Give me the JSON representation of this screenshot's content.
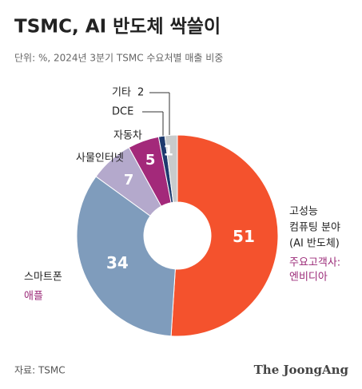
{
  "chart_data": {
    "type": "donut",
    "title": "TSMC, AI 반도체 싹쓸이",
    "subtitle": "단위: %, 2024년 3분기 TSMC 수요처별 매출 비중",
    "source": "자료: TSMC",
    "logo": "The JoongAng",
    "categories": [
      [
        "고성능",
        "컴퓨팅 분야",
        "(AI 반도체)"
      ],
      [
        "스마트폰"
      ],
      [
        "사물인터넷"
      ],
      [
        "자동차"
      ],
      [
        "DCE"
      ],
      [
        "기타"
      ]
    ],
    "customers": [
      [
        "주요고객사:",
        "엔비디아"
      ],
      [
        "애플"
      ],
      null,
      null,
      null,
      null
    ],
    "values": [
      51,
      34,
      7,
      5,
      1,
      2
    ],
    "colors": [
      "#f4522d",
      "#7f9cbc",
      "#b4a9cc",
      "#a3297a",
      "#1e3a6e",
      "#c8cbcc"
    ],
    "customer_color": "#9b2a78"
  }
}
